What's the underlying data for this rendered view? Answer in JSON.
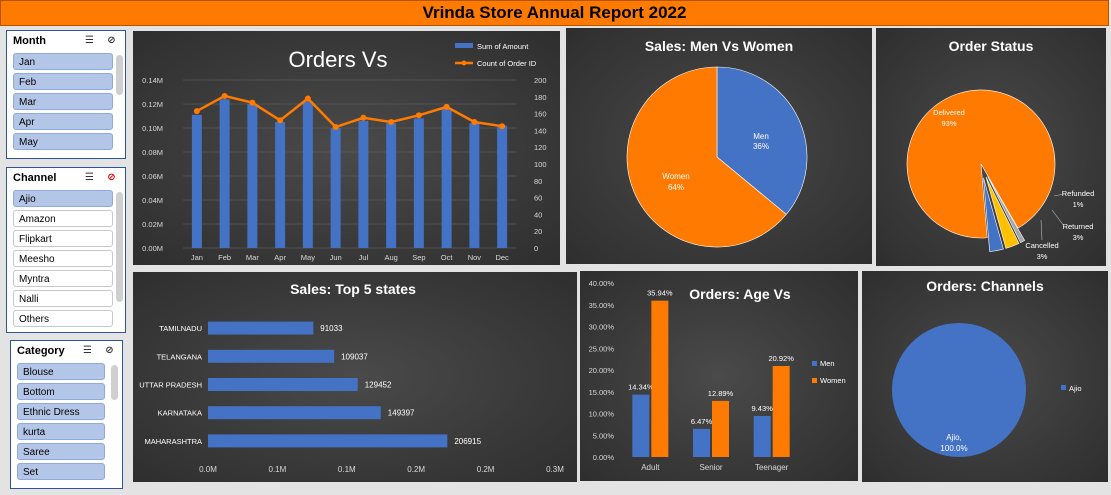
{
  "report_title": "Vrinda Store Annual Report 2022",
  "slicers": {
    "month": {
      "title": "Month",
      "items": [
        "Jan",
        "Feb",
        "Mar",
        "Apr",
        "May"
      ]
    },
    "channel": {
      "title": "Channel",
      "items": [
        "Ajio",
        "Amazon",
        "Flipkart",
        "Meesho",
        "Myntra",
        "Nalli",
        "Others"
      ]
    },
    "category": {
      "title": "Category",
      "items": [
        "Blouse",
        "Bottom",
        "Ethnic Dress",
        "kurta",
        "Saree",
        "Set"
      ]
    }
  },
  "icons": {
    "multiselect": "multi-select-icon",
    "clear_filter": "clear-filter-icon"
  },
  "colors": {
    "blue": "#4472c4",
    "orange": "#ff7a00",
    "header": "#ff7a00",
    "slicer_selected": "#b4c6e7",
    "panel": "#3a3a3a"
  },
  "chart_data": [
    {
      "id": "orders",
      "type": "bar",
      "title": "Orders Vs",
      "categories": [
        "Jan",
        "Feb",
        "Mar",
        "Apr",
        "May",
        "Jun",
        "Jul",
        "Aug",
        "Sep",
        "Oct",
        "Nov",
        "Dec"
      ],
      "series": [
        {
          "name": "Sum of Amount",
          "type": "bar",
          "axis": "left",
          "values": [
            0.111,
            0.124,
            0.12,
            0.105,
            0.122,
            0.1,
            0.106,
            0.104,
            0.108,
            0.116,
            0.104,
            0.102
          ]
        },
        {
          "name": "Count of Order ID",
          "type": "line",
          "axis": "right",
          "values": [
            163,
            181,
            173,
            152,
            178,
            144,
            155,
            150,
            158,
            168,
            150,
            145
          ]
        }
      ],
      "y_left": {
        "min": 0,
        "max": 0.14,
        "ticks": [
          "0.00M",
          "0.02M",
          "0.04M",
          "0.06M",
          "0.08M",
          "0.10M",
          "0.12M",
          "0.14M"
        ]
      },
      "y_right": {
        "min": 0,
        "max": 200,
        "ticks": [
          "0",
          "20",
          "40",
          "60",
          "80",
          "100",
          "120",
          "140",
          "160",
          "180",
          "200"
        ]
      },
      "legend": "top-right"
    },
    {
      "id": "gender",
      "type": "pie",
      "title": "Sales: Men Vs Women",
      "slices": [
        {
          "name": "Men",
          "value": 36,
          "label": "36%",
          "color": "#4472c4"
        },
        {
          "name": "Women",
          "value": 64,
          "label": "64%",
          "color": "#ff7a00"
        }
      ]
    },
    {
      "id": "status",
      "type": "pie",
      "title": "Order Status",
      "slices": [
        {
          "name": "Delivered",
          "value": 93,
          "label": "93%",
          "color": "#ff7a00"
        },
        {
          "name": "Refunded",
          "value": 1,
          "label": "1%",
          "color": "#a5a5a5"
        },
        {
          "name": "Returned",
          "value": 3,
          "label": "3%",
          "color": "#ffc000"
        },
        {
          "name": "Cancelled",
          "value": 3,
          "label": "3%",
          "color": "#4472c4"
        }
      ]
    },
    {
      "id": "states",
      "type": "bar",
      "orientation": "horizontal",
      "title": "Sales: Top 5 states",
      "categories": [
        "TAMILNADU",
        "TELANGANA",
        "UTTAR PRADESH",
        "KARNATAKA",
        "MAHARASHTRA"
      ],
      "values": [
        91033,
        109037,
        129452,
        149397,
        206915
      ],
      "xlim": [
        0,
        300000
      ],
      "x_ticks": [
        "0.0M",
        "0.1M",
        "0.1M",
        "0.2M",
        "0.2M",
        "0.3M"
      ]
    },
    {
      "id": "age",
      "type": "bar",
      "title": "Orders: Age Vs",
      "categories": [
        "Adult",
        "Senior",
        "Teenager"
      ],
      "series": [
        {
          "name": "Men",
          "values": [
            14.34,
            6.47,
            9.43
          ],
          "labels": [
            "14.34%",
            "6.47%",
            "9.43%"
          ]
        },
        {
          "name": "Women",
          "values": [
            35.94,
            12.89,
            20.92
          ],
          "labels": [
            "35.94%",
            "12.89%",
            "20.92%"
          ]
        }
      ],
      "ylim": [
        0,
        40
      ],
      "y_ticks": [
        "0.00%",
        "5.00%",
        "10.00%",
        "15.00%",
        "20.00%",
        "25.00%",
        "30.00%",
        "35.00%",
        "40.00%"
      ],
      "legend": "right"
    },
    {
      "id": "channels",
      "type": "pie",
      "title": "Orders: Channels",
      "slices": [
        {
          "name": "Ajio",
          "value": 100,
          "label": "Ajio,\n100.0%",
          "color": "#4472c4"
        }
      ],
      "legend": "right"
    }
  ]
}
